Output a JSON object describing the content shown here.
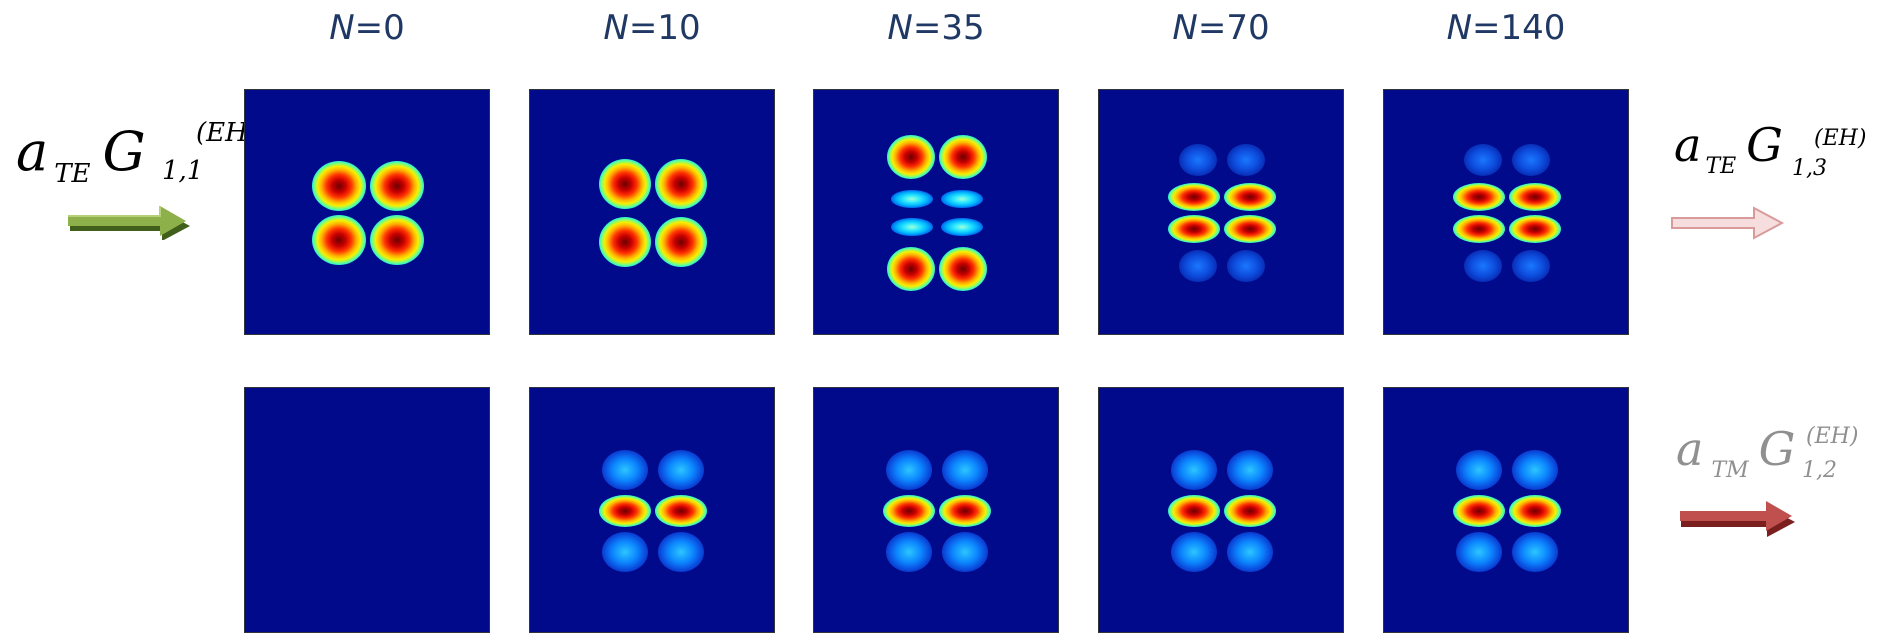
{
  "columns": [
    {
      "var": "N",
      "value": "=0"
    },
    {
      "var": "N",
      "value": "=10"
    },
    {
      "var": "N",
      "value": "=35"
    },
    {
      "var": "N",
      "value": "=70"
    },
    {
      "var": "N",
      "value": "=140"
    }
  ],
  "modes": {
    "input": {
      "a": "a",
      "pol": "TE",
      "G": "G",
      "sup": "(EH)",
      "sub": "1,1"
    },
    "output_top": {
      "a": "a",
      "pol": "TE",
      "G": "G",
      "sup": "(EH)",
      "sub": "1,3"
    },
    "output_bottom": {
      "a": "a",
      "pol": "TM",
      "G": "G",
      "sup": "(EH)",
      "sub": "1,2"
    }
  },
  "colors": {
    "label_text": "#1f3864",
    "panel_background": "#020a8c",
    "input_arrow": "#8db04a",
    "output_top_arrow": "#f2c6c6",
    "output_bottom_arrow": "#c0504d",
    "output_bottom_text": "#909090"
  },
  "colormap": "jet",
  "panels": {
    "top_row": [
      "2x2 lobes",
      "2x2 lobes",
      "2x4 lobes",
      "2x4 lobes",
      "2x4 lobes"
    ],
    "bottom_row": [
      "empty",
      "2x3 lobes",
      "2x3 lobes",
      "2x3 lobes",
      "2x3 lobes"
    ]
  }
}
